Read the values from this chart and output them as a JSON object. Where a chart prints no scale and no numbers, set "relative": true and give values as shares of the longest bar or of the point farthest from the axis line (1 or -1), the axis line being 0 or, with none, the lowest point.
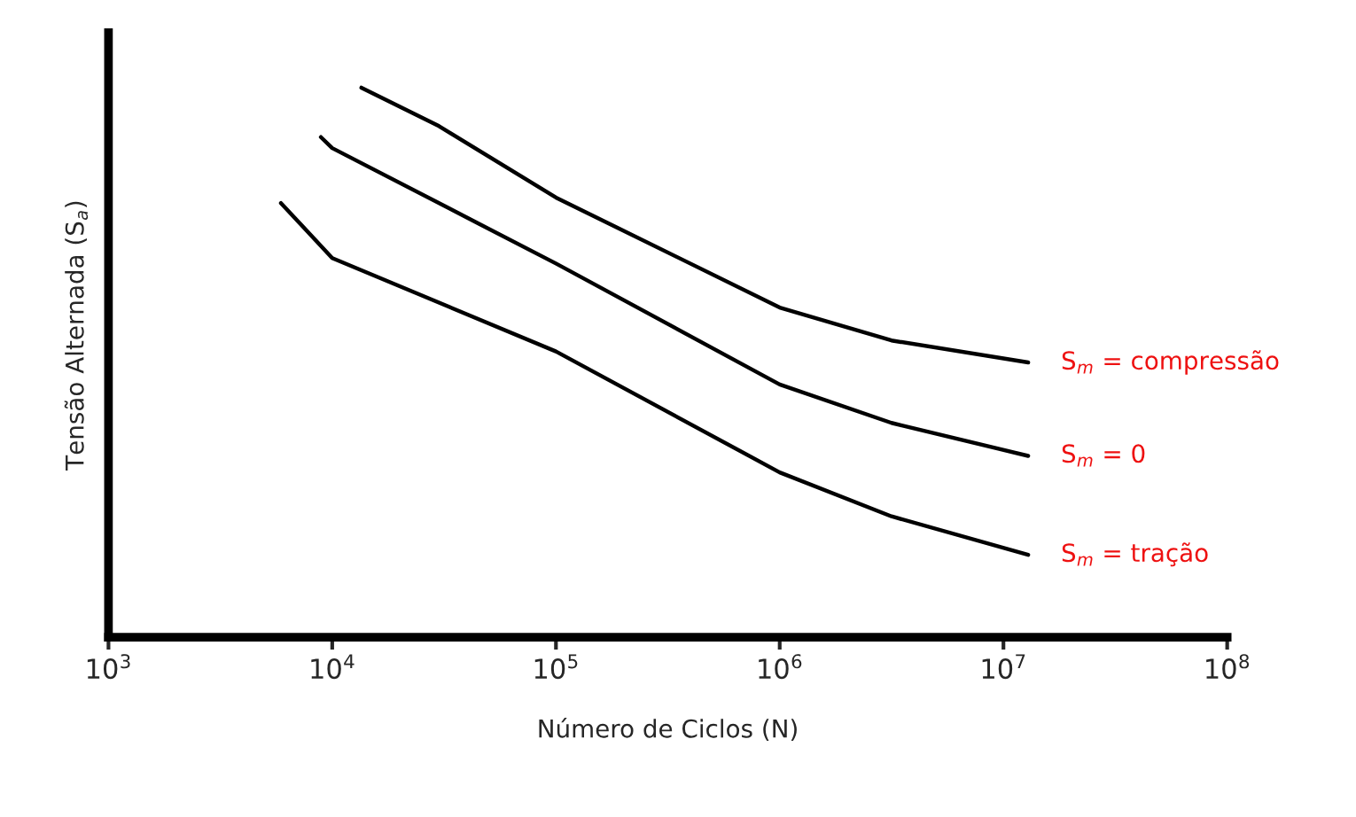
{
  "chart_data": {
    "type": "line",
    "relative": true,
    "log": "x",
    "grid": false,
    "legend": false,
    "tick_labels": "x",
    "marker": "none",
    "line_style": "solid",
    "xlabel": "Número de Ciclos (N)",
    "ylabel": "Tensão Alternada (S$_{a}$)",
    "xlim": [
      1000,
      100000000
    ],
    "xticks": [
      {
        "value": 1000,
        "label": "10$^{3}$"
      },
      {
        "value": 10000,
        "label": "10$^{4}$"
      },
      {
        "value": 100000,
        "label": "10$^{5}$"
      },
      {
        "value": 1000000,
        "label": "10$^{6}$"
      },
      {
        "value": 10000000,
        "label": "10$^{7}$"
      },
      {
        "value": 100000000,
        "label": "10$^{8}$"
      }
    ],
    "series": [
      {
        "name": "S$_{m}$ = compressão",
        "color": "#000000",
        "x": [
          13500,
          30000,
          100000,
          1000000,
          3160000,
          12900000
        ],
        "values": [
          1.0,
          0.93,
          0.8,
          0.6,
          0.54,
          0.5
        ]
      },
      {
        "name": "S$_{m}$ = 0",
        "color": "#000000",
        "x": [
          8900,
          10000,
          100000,
          1000000,
          3160000,
          12900000
        ],
        "values": [
          0.91,
          0.89,
          0.68,
          0.46,
          0.39,
          0.33
        ]
      },
      {
        "name": "S$_{m}$ = tração",
        "color": "#000000",
        "x": [
          5900,
          10000,
          100000,
          1000000,
          3160000,
          12900000
        ],
        "values": [
          0.79,
          0.69,
          0.52,
          0.3,
          0.22,
          0.15
        ]
      }
    ]
  }
}
